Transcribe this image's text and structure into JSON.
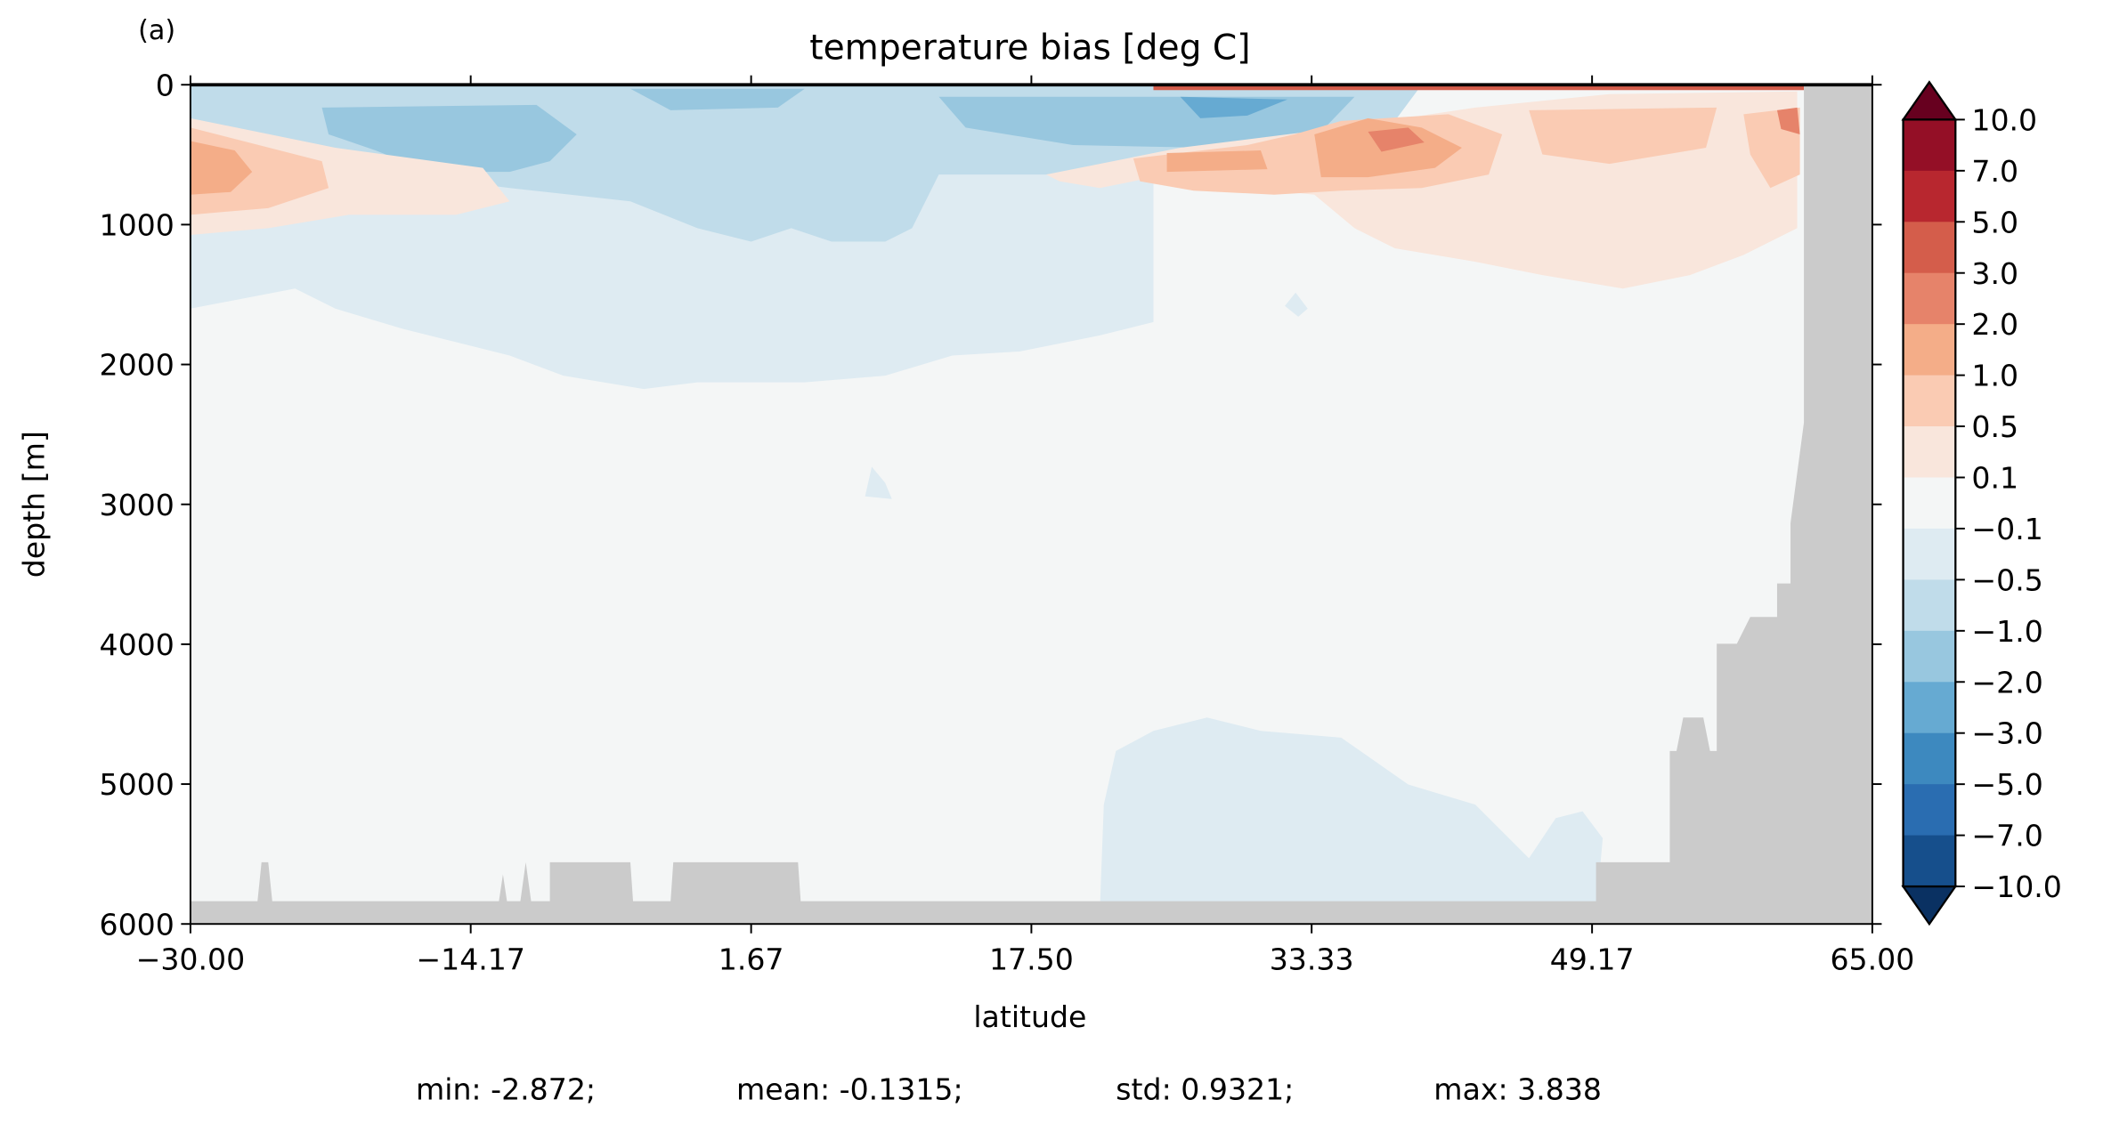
{
  "panel_label": "(a)",
  "chart_data": {
    "type": "heatmap",
    "subtype": "filled-contour depth-latitude section",
    "title": "temperature bias [deg C]",
    "xlabel": "latitude",
    "ylabel": "depth [m]",
    "xlim": [
      -30,
      65
    ],
    "ylim": [
      6000,
      0
    ],
    "xticks": [
      "−30.00",
      "−14.17",
      "1.67",
      "17.50",
      "33.33",
      "49.17",
      "65.00"
    ],
    "xtick_values": [
      -30,
      -14.17,
      1.67,
      17.5,
      33.33,
      49.17,
      65
    ],
    "yticks": [
      "0",
      "1000",
      "2000",
      "3000",
      "4000",
      "5000",
      "6000"
    ],
    "ytick_values": [
      0,
      1000,
      2000,
      3000,
      4000,
      5000,
      6000
    ],
    "colorbar": {
      "levels": [
        "10.0",
        "7.0",
        "5.0",
        "3.0",
        "2.0",
        "1.0",
        "0.5",
        "0.1",
        "−0.1",
        "−0.5",
        "−1.0",
        "−2.0",
        "−3.0",
        "−5.0",
        "−7.0",
        "−10.0"
      ],
      "colors": [
        "#940f26",
        "#b8272f",
        "#d45d4b",
        "#e6836a",
        "#f4ad88",
        "#facbb3",
        "#f9e6dc",
        "#f4f6f6",
        "#deebf2",
        "#c0dcea",
        "#98c7df",
        "#66aad2",
        "#3d89bf",
        "#2a6db1",
        "#164f8c"
      ],
      "over_color": "#67001f",
      "under_color": "#0a3162",
      "extend": "both"
    },
    "land_color": "#cbcbcb",
    "stats": {
      "min": "min: -2.872;",
      "mean": "mean: -0.1315;",
      "std": "std: 0.9321;",
      "max": "max: 3.838"
    }
  }
}
